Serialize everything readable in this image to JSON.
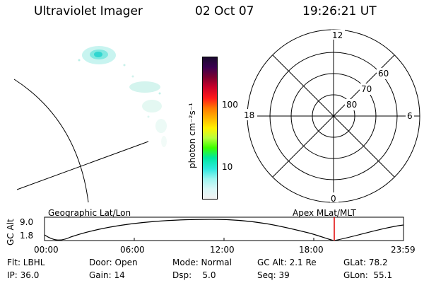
{
  "header": {
    "title": "Ultraviolet Imager",
    "date": "02 Oct 07",
    "time": "19:26:21 UT"
  },
  "colorbar": {
    "label": "photon cm⁻²s⁻¹",
    "ticks": [
      "100",
      "10"
    ],
    "colors": [
      "#1a0a2e",
      "#3a0050",
      "#7a0030",
      "#c8002a",
      "#ff1a1a",
      "#ff7a00",
      "#ffb400",
      "#fff200",
      "#b8ff3c",
      "#3cff00",
      "#00e8a0",
      "#30e8e0",
      "#9ff5f0",
      "#d8f8f8",
      "#f2f2f2"
    ]
  },
  "polar": {
    "hour_labels": [
      "12",
      "18",
      "6",
      "0"
    ],
    "lat_labels": [
      "60",
      "70",
      "80"
    ]
  },
  "timeline": {
    "left_title": "Geographic Lat/Lon",
    "right_title": "Apex MLat/MLT",
    "yaxis_label": "GC Alt",
    "ytick_top": "9.0",
    "ytick_bottom": "1.8",
    "time_ticks": [
      "00:00",
      "06:00",
      "12:00",
      "18:00",
      "23:59"
    ],
    "marker_color": "#e00000"
  },
  "info": {
    "flt": "Flt: LBHL",
    "ip": "IP: 36.0",
    "door": "Door: Open",
    "gain": "Gain: 14",
    "mode": "Mode: Normal",
    "dsp": "Dsp:    5.0",
    "gcalt": "GC Alt: 2.1 Re",
    "seq": "Seq: 39",
    "glat": "GLat: 78.2",
    "glon": "GLon:  55.1"
  }
}
